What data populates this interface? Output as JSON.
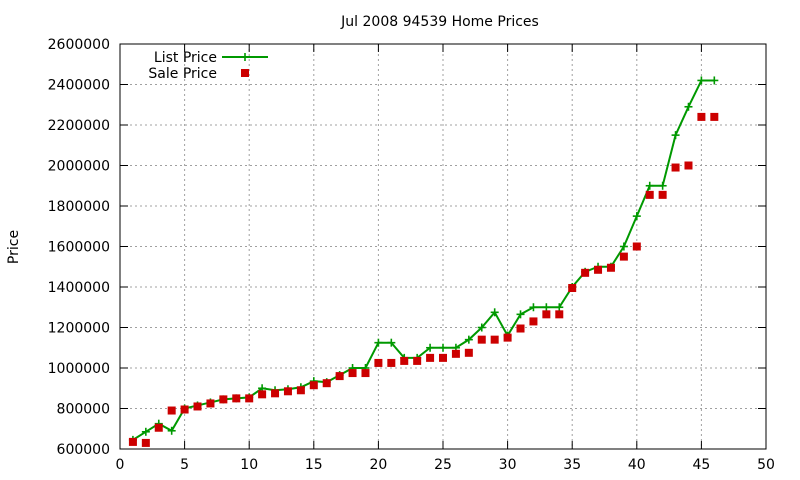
{
  "chart_data": {
    "type": "line",
    "title": "Jul 2008 94539 Home Prices",
    "xlabel": "",
    "ylabel": "Price",
    "xlim": [
      0,
      50
    ],
    "ylim": [
      600000,
      2600000
    ],
    "x_ticks": [
      "0",
      "5",
      "10",
      "15",
      "20",
      "25",
      "30",
      "35",
      "40",
      "45",
      "50"
    ],
    "y_ticks": [
      "600000",
      "800000",
      "1000000",
      "1200000",
      "1400000",
      "1600000",
      "1800000",
      "2000000",
      "2200000",
      "2400000",
      "2600000"
    ],
    "grid": true,
    "legend_position": "top-left",
    "series": [
      {
        "name": "List Price",
        "style": "line-plus",
        "color": "#009900",
        "x": [
          1,
          2,
          3,
          4,
          5,
          6,
          7,
          8,
          9,
          10,
          11,
          12,
          13,
          14,
          15,
          16,
          17,
          18,
          19,
          20,
          21,
          22,
          23,
          24,
          25,
          26,
          27,
          28,
          29,
          30,
          31,
          32,
          33,
          34,
          35,
          36,
          37,
          38,
          39,
          40,
          41,
          42,
          43,
          44,
          45,
          46
        ],
        "y": [
          645000,
          685000,
          725000,
          690000,
          800000,
          815000,
          830000,
          845000,
          850000,
          855000,
          900000,
          890000,
          895000,
          905000,
          935000,
          930000,
          965000,
          1000000,
          1000000,
          1125000,
          1125000,
          1050000,
          1050000,
          1100000,
          1100000,
          1100000,
          1140000,
          1200000,
          1275000,
          1160000,
          1265000,
          1300000,
          1300000,
          1300000,
          1400000,
          1475000,
          1500000,
          1500000,
          1600000,
          1750000,
          1900000,
          1900000,
          2150000,
          2290000,
          2420000,
          2420000
        ]
      },
      {
        "name": "Sale Price",
        "style": "square-points",
        "color": "#cc0000",
        "x": [
          1,
          2,
          3,
          4,
          5,
          6,
          7,
          8,
          9,
          10,
          11,
          12,
          13,
          14,
          15,
          16,
          17,
          18,
          19,
          20,
          21,
          22,
          23,
          24,
          25,
          26,
          27,
          28,
          29,
          30,
          31,
          32,
          33,
          34,
          35,
          36,
          37,
          38,
          39,
          40,
          41,
          42,
          43,
          44,
          45,
          46
        ],
        "y": [
          635000,
          630000,
          705000,
          790000,
          795000,
          810000,
          825000,
          845000,
          850000,
          850000,
          870000,
          875000,
          885000,
          890000,
          915000,
          925000,
          960000,
          975000,
          975000,
          1025000,
          1025000,
          1035000,
          1035000,
          1050000,
          1050000,
          1070000,
          1075000,
          1140000,
          1140000,
          1150000,
          1195000,
          1230000,
          1265000,
          1265000,
          1395000,
          1470000,
          1485000,
          1495000,
          1550000,
          1600000,
          1855000,
          1855000,
          1990000,
          2000000,
          2240000,
          2240000
        ]
      }
    ]
  }
}
